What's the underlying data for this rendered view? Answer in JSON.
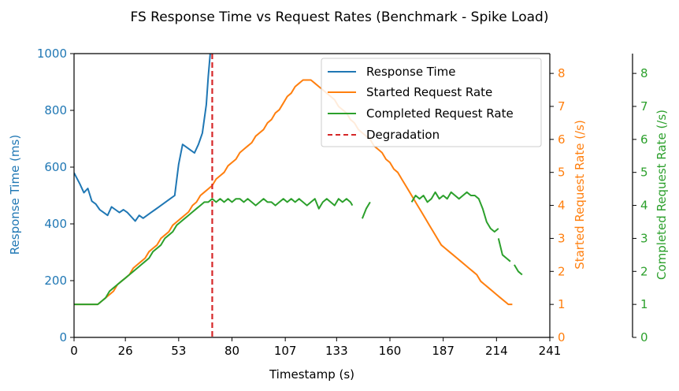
{
  "chart_data": {
    "type": "line",
    "title": "FS Response Time vs Request Rates (Benchmark - Spike Load)",
    "xlabel": "Timestamp (s)",
    "xlim": [
      0,
      241
    ],
    "x_ticks": [
      "0",
      "26",
      "53",
      "80",
      "107",
      "133",
      "160",
      "187",
      "214",
      "241"
    ],
    "axes": {
      "left": {
        "label": "Response Time (ms)",
        "range": [
          0,
          1000
        ],
        "ticks": [
          "0",
          "200",
          "400",
          "600",
          "800",
          "1000"
        ]
      },
      "right1": {
        "label": "Started Request Rate (/s)",
        "range": [
          0,
          8.6
        ],
        "ticks": [
          "0",
          "1",
          "2",
          "3",
          "4",
          "5",
          "6",
          "7",
          "8"
        ]
      },
      "right2": {
        "label": "Completed Request Rate (/s)",
        "range": [
          0,
          8.6
        ],
        "ticks": [
          "0",
          "1",
          "2",
          "3",
          "4",
          "5",
          "6",
          "7",
          "8"
        ]
      }
    },
    "legend": {
      "position": "top-right"
    },
    "colors": {
      "response": "#1f77b4",
      "started": "#ff7f0e",
      "completed": "#2ca02c",
      "degradation": "#d62728"
    },
    "degradation_x": 70,
    "series": [
      {
        "name": "Response Time",
        "axis": "left",
        "x": [
          0,
          3,
          5,
          7,
          9,
          11,
          13,
          15,
          17,
          19,
          21,
          23,
          25,
          27,
          29,
          31,
          33,
          35,
          37,
          39,
          41,
          43,
          45,
          47,
          49,
          51,
          53,
          55,
          57,
          59,
          61,
          63,
          65,
          67,
          68,
          69
        ],
        "y": [
          580,
          540,
          510,
          525,
          480,
          470,
          450,
          440,
          430,
          460,
          450,
          440,
          450,
          440,
          425,
          410,
          430,
          420,
          430,
          440,
          450,
          460,
          470,
          480,
          490,
          500,
          610,
          680,
          670,
          660,
          650,
          680,
          720,
          820,
          920,
          1000
        ]
      },
      {
        "name": "Started Request Rate",
        "axis": "right1",
        "x": [
          0,
          12,
          14,
          16,
          18,
          20,
          22,
          24,
          26,
          28,
          30,
          32,
          34,
          36,
          38,
          40,
          42,
          44,
          46,
          48,
          50,
          52,
          54,
          56,
          58,
          60,
          62,
          64,
          66,
          68,
          70,
          72,
          74,
          76,
          78,
          80,
          82,
          84,
          86,
          88,
          90,
          92,
          94,
          96,
          98,
          100,
          102,
          104,
          106,
          108,
          110,
          112,
          114,
          116,
          118,
          120,
          122,
          124,
          126,
          128,
          130,
          132,
          134,
          136,
          138,
          140,
          142,
          144,
          146,
          148,
          150,
          152,
          154,
          156,
          158,
          160,
          162,
          164,
          166,
          168,
          170,
          172,
          174,
          176,
          178,
          180,
          182,
          184,
          186,
          188,
          190,
          192,
          194,
          196,
          198,
          200,
          202,
          204,
          206,
          208,
          210,
          212,
          214,
          216,
          218,
          220,
          222
        ],
        "y": [
          1.0,
          1.0,
          1.1,
          1.2,
          1.3,
          1.4,
          1.6,
          1.7,
          1.8,
          1.9,
          2.1,
          2.2,
          2.3,
          2.4,
          2.6,
          2.7,
          2.8,
          3.0,
          3.1,
          3.2,
          3.4,
          3.5,
          3.6,
          3.7,
          3.8,
          4.0,
          4.1,
          4.3,
          4.4,
          4.5,
          4.6,
          4.8,
          4.9,
          5.0,
          5.2,
          5.3,
          5.4,
          5.6,
          5.7,
          5.8,
          5.9,
          6.1,
          6.2,
          6.3,
          6.5,
          6.6,
          6.8,
          6.9,
          7.1,
          7.3,
          7.4,
          7.6,
          7.7,
          7.8,
          7.8,
          7.8,
          7.7,
          7.6,
          7.5,
          7.4,
          7.3,
          7.2,
          7.0,
          6.9,
          6.8,
          6.6,
          6.5,
          6.3,
          6.2,
          6.1,
          6.0,
          5.8,
          5.7,
          5.6,
          5.4,
          5.3,
          5.1,
          5.0,
          4.8,
          4.6,
          4.4,
          4.2,
          4.0,
          3.8,
          3.6,
          3.4,
          3.2,
          3.0,
          2.8,
          2.7,
          2.6,
          2.5,
          2.4,
          2.3,
          2.2,
          2.1,
          2.0,
          1.9,
          1.7,
          1.6,
          1.5,
          1.4,
          1.3,
          1.2,
          1.1,
          1.0,
          1.0
        ]
      },
      {
        "name": "Completed Request Rate",
        "axis": "right2",
        "segments": [
          {
            "x": [
              0,
              4,
              8,
              12,
              14,
              16,
              18,
              20,
              22,
              24,
              26,
              28,
              30,
              32,
              34,
              36,
              38,
              40,
              42,
              44,
              46,
              48,
              50,
              52,
              54,
              56,
              58,
              60,
              62,
              64,
              66,
              68,
              70,
              72,
              74,
              76,
              78,
              80,
              82,
              84,
              86,
              88,
              90,
              92,
              94,
              96,
              98,
              100,
              102,
              104,
              106,
              108,
              110,
              112,
              114,
              116,
              118,
              120,
              122,
              124,
              126,
              128,
              130,
              132,
              134,
              136,
              138,
              140,
              141
            ],
            "y": [
              1.0,
              1.0,
              1.0,
              1.0,
              1.1,
              1.2,
              1.4,
              1.5,
              1.6,
              1.7,
              1.8,
              1.9,
              2.0,
              2.1,
              2.2,
              2.3,
              2.4,
              2.6,
              2.7,
              2.8,
              3.0,
              3.1,
              3.2,
              3.4,
              3.5,
              3.6,
              3.7,
              3.8,
              3.9,
              4.0,
              4.1,
              4.1,
              4.2,
              4.1,
              4.2,
              4.1,
              4.2,
              4.1,
              4.2,
              4.2,
              4.1,
              4.2,
              4.1,
              4.0,
              4.1,
              4.2,
              4.1,
              4.1,
              4.0,
              4.1,
              4.2,
              4.1,
              4.2,
              4.1,
              4.2,
              4.1,
              4.0,
              4.1,
              4.2,
              3.9,
              4.1,
              4.2,
              4.1,
              4.0,
              4.2,
              4.1,
              4.2,
              4.1,
              4.0
            ]
          },
          {
            "x": [
              146,
              148,
              150
            ],
            "y": [
              3.6,
              3.9,
              4.1
            ]
          },
          {
            "x": [
              171,
              173,
              175,
              177,
              179,
              181,
              183,
              185,
              187,
              189,
              191,
              193,
              195,
              197,
              199,
              201,
              203,
              205,
              207,
              209,
              211,
              213,
              215
            ],
            "y": [
              4.1,
              4.3,
              4.2,
              4.3,
              4.1,
              4.2,
              4.4,
              4.2,
              4.3,
              4.2,
              4.4,
              4.3,
              4.2,
              4.3,
              4.4,
              4.3,
              4.3,
              4.2,
              3.9,
              3.5,
              3.3,
              3.2,
              3.3
            ]
          },
          {
            "x": [
              215,
              217,
              219,
              221
            ],
            "y": [
              3.0,
              2.5,
              2.4,
              2.3
            ]
          },
          {
            "x": [
              223,
              225,
              227
            ],
            "y": [
              2.2,
              2.0,
              1.9
            ]
          }
        ]
      }
    ]
  }
}
